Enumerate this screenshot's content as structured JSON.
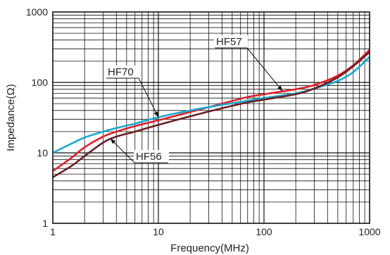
{
  "chart_data": {
    "type": "line",
    "title": "",
    "xlabel": "Frequency(MHz)",
    "ylabel": "Impedance(Ω)",
    "x_scale": "log",
    "y_scale": "log",
    "xlim": [
      1,
      1000
    ],
    "ylim": [
      1,
      1000
    ],
    "grid": true,
    "x_ticks": [
      "1",
      "10",
      "100",
      "1000"
    ],
    "y_ticks": [
      "1",
      "10",
      "100",
      "1000"
    ],
    "series": [
      {
        "name": "HF57",
        "color": "#e0202a",
        "points": [
          [
            1,
            5.5
          ],
          [
            1.5,
            8.5
          ],
          [
            2,
            12
          ],
          [
            3,
            17
          ],
          [
            4,
            20
          ],
          [
            6,
            24
          ],
          [
            10,
            29
          ],
          [
            20,
            38
          ],
          [
            40,
            50
          ],
          [
            70,
            62
          ],
          [
            100,
            68
          ],
          [
            200,
            80
          ],
          [
            300,
            92
          ],
          [
            500,
            125
          ],
          [
            700,
            175
          ],
          [
            1000,
            290
          ]
        ]
      },
      {
        "name": "HF70",
        "color": "#1aa8cf",
        "points": [
          [
            1,
            10
          ],
          [
            1.5,
            13.5
          ],
          [
            2,
            16.5
          ],
          [
            3,
            20
          ],
          [
            4,
            22.5
          ],
          [
            6,
            26
          ],
          [
            10,
            32
          ],
          [
            20,
            40
          ],
          [
            40,
            48
          ],
          [
            70,
            55
          ],
          [
            100,
            60
          ],
          [
            200,
            70
          ],
          [
            300,
            82
          ],
          [
            500,
            105
          ],
          [
            700,
            140
          ],
          [
            1000,
            230
          ]
        ]
      },
      {
        "name": "HF56",
        "color": "#6b1f22",
        "points": [
          [
            1,
            4.5
          ],
          [
            1.5,
            6.5
          ],
          [
            2,
            9
          ],
          [
            3,
            14
          ],
          [
            4,
            17
          ],
          [
            6,
            20
          ],
          [
            10,
            25
          ],
          [
            20,
            33
          ],
          [
            40,
            43
          ],
          [
            70,
            52
          ],
          [
            100,
            57
          ],
          [
            200,
            68
          ],
          [
            300,
            82
          ],
          [
            500,
            118
          ],
          [
            700,
            170
          ],
          [
            1000,
            270
          ]
        ]
      }
    ],
    "annotations": [
      {
        "text": "HF57",
        "series": "HF57",
        "at": [
          150,
          75
        ]
      },
      {
        "text": "HF70",
        "series": "HF70",
        "at": [
          10,
          32
        ]
      },
      {
        "text": "HF56",
        "series": "HF56",
        "at": [
          3.5,
          16
        ]
      }
    ]
  }
}
